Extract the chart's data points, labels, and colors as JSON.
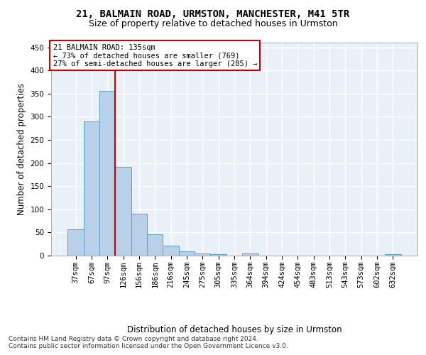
{
  "title_line1": "21, BALMAIN ROAD, URMSTON, MANCHESTER, M41 5TR",
  "title_line2": "Size of property relative to detached houses in Urmston",
  "xlabel": "Distribution of detached houses by size in Urmston",
  "ylabel": "Number of detached properties",
  "categories": [
    "37sqm",
    "67sqm",
    "97sqm",
    "126sqm",
    "156sqm",
    "186sqm",
    "216sqm",
    "245sqm",
    "275sqm",
    "305sqm",
    "335sqm",
    "364sqm",
    "394sqm",
    "424sqm",
    "454sqm",
    "483sqm",
    "513sqm",
    "543sqm",
    "573sqm",
    "602sqm",
    "632sqm"
  ],
  "values": [
    57,
    290,
    355,
    192,
    90,
    46,
    21,
    9,
    4,
    3,
    0,
    4,
    0,
    0,
    0,
    0,
    0,
    0,
    0,
    0,
    3
  ],
  "bar_color": "#b8d0e8",
  "bar_edge_color": "#5a9fd4",
  "vline_x": 2.5,
  "vline_color": "#cc0000",
  "annotation_text": "21 BALMAIN ROAD: 135sqm\n← 73% of detached houses are smaller (769)\n27% of semi-detached houses are larger (285) →",
  "annotation_box_color": "#ffffff",
  "annotation_box_edge_color": "#cc0000",
  "ylim": [
    0,
    460
  ],
  "yticks": [
    0,
    50,
    100,
    150,
    200,
    250,
    300,
    350,
    400,
    450
  ],
  "footnote": "Contains HM Land Registry data © Crown copyright and database right 2024.\nContains public sector information licensed under the Open Government Licence v3.0.",
  "bg_color": "#eaf0f8",
  "grid_color": "#ffffff",
  "title_fontsize": 10,
  "subtitle_fontsize": 9,
  "axis_label_fontsize": 8.5,
  "tick_fontsize": 7.5,
  "footnote_fontsize": 6.5
}
